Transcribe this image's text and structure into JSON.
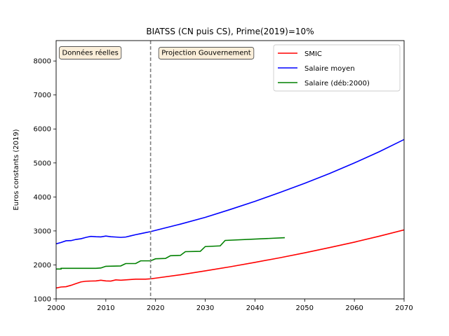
{
  "chart_data": {
    "type": "line",
    "title": "BIATSS (CN puis CS), Prime(2019)=10%",
    "xlabel": "",
    "ylabel": "Euros constants (2019)",
    "xlim": [
      2000,
      2070
    ],
    "ylim": [
      1000,
      8600
    ],
    "xticks": [
      2000,
      2010,
      2020,
      2030,
      2040,
      2050,
      2060,
      2070
    ],
    "yticks": [
      1000,
      2000,
      3000,
      4000,
      5000,
      6000,
      7000,
      8000
    ],
    "grid": false,
    "legend_position": "top-right",
    "vline": {
      "x": 2019,
      "style": "dashed",
      "color": "#808080"
    },
    "annotations": [
      {
        "text": "Données réelles",
        "x": 2001.2,
        "y": 8250
      },
      {
        "text": "Projection Gouvernement",
        "x": 2021.2,
        "y": 8250
      }
    ],
    "series": [
      {
        "name": "SMIC",
        "color": "#ff0000",
        "x": [
          2000,
          2001,
          2002,
          2003,
          2004,
          2005,
          2006,
          2007,
          2008,
          2009,
          2010,
          2011,
          2012,
          2013,
          2014,
          2015,
          2016,
          2017,
          2018,
          2019,
          2020,
          2025,
          2030,
          2035,
          2040,
          2045,
          2050,
          2055,
          2060,
          2065,
          2070
        ],
        "y": [
          1320,
          1350,
          1360,
          1400,
          1450,
          1500,
          1520,
          1525,
          1530,
          1550,
          1530,
          1525,
          1560,
          1550,
          1560,
          1570,
          1580,
          1580,
          1580,
          1590,
          1610,
          1710,
          1825,
          1945,
          2075,
          2210,
          2355,
          2510,
          2670,
          2845,
          3030
        ]
      },
      {
        "name": "Salaire moyen",
        "color": "#0000ff",
        "x": [
          2000,
          2001,
          2002,
          2003,
          2004,
          2005,
          2006,
          2007,
          2008,
          2009,
          2010,
          2011,
          2012,
          2013,
          2014,
          2015,
          2016,
          2017,
          2018,
          2019,
          2025,
          2030,
          2035,
          2040,
          2045,
          2050,
          2055,
          2060,
          2065,
          2070
        ],
        "y": [
          2620,
          2660,
          2710,
          2715,
          2750,
          2770,
          2810,
          2840,
          2830,
          2825,
          2850,
          2830,
          2820,
          2810,
          2820,
          2855,
          2890,
          2920,
          2950,
          2980,
          3200,
          3400,
          3630,
          3870,
          4130,
          4400,
          4690,
          5000,
          5330,
          5690
        ]
      },
      {
        "name": "Salaire (déb:2000)",
        "color": "#008000",
        "x": [
          2000,
          2001,
          2001,
          2005,
          2007,
          2008,
          2009,
          2010,
          2013,
          2014,
          2016,
          2017,
          2019,
          2020,
          2022,
          2023,
          2025,
          2026,
          2029,
          2030,
          2033,
          2034,
          2046
        ],
        "y": [
          1880,
          1880,
          1900,
          1900,
          1900,
          1900,
          1910,
          1960,
          1970,
          2040,
          2040,
          2120,
          2120,
          2180,
          2190,
          2270,
          2280,
          2390,
          2400,
          2540,
          2560,
          2720,
          2800
        ]
      }
    ]
  }
}
